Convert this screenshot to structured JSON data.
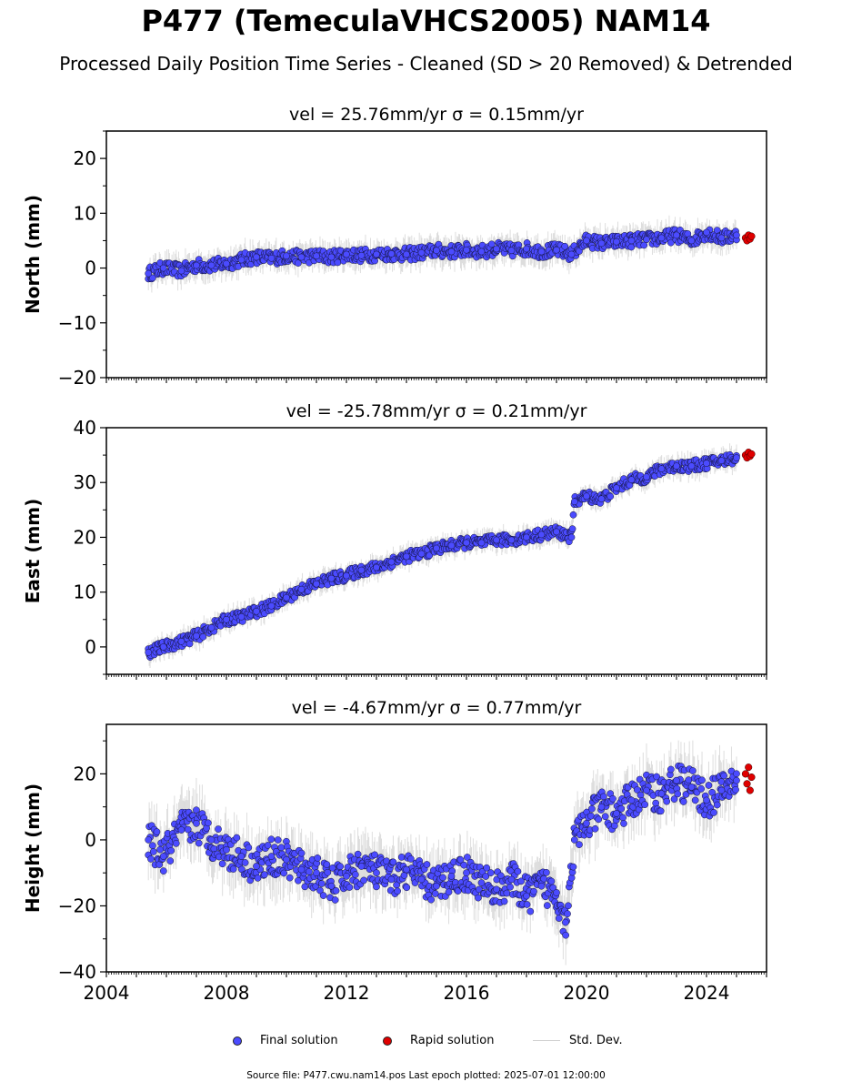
{
  "title": "P477 (TemeculaVHCS2005) NAM14",
  "subtitle": "Processed Daily Position Time Series - Cleaned (SD > 20 Removed) & Detrended",
  "legend": {
    "final_label": "Final solution",
    "rapid_label": "Rapid solution",
    "std_label": "Std. Dev."
  },
  "colors": {
    "final": "#4b4bff",
    "rapid": "#e00000",
    "std": "#c8c8c8"
  },
  "footer": "Source file: P477.cwu.nam14.pos  Last epoch plotted: 2025-07-01 12:00:00",
  "chart_data": [
    {
      "type": "scatter",
      "title": "vel = 25.76mm/yr   σ = 0.15mm/yr",
      "ylabel": "North (mm)",
      "xlim": [
        2004.0,
        2026.0
      ],
      "ylim": [
        -20,
        25
      ],
      "yticks": [
        -20,
        -10,
        0,
        10,
        20
      ],
      "series": [
        {
          "name": "Final solution",
          "x": [
            2005.4,
            2005.9,
            2006.5,
            2007.0,
            2007.5,
            2008.0,
            2008.5,
            2009.0,
            2009.5,
            2010.0,
            2010.5,
            2011.0,
            2011.5,
            2012.0,
            2012.5,
            2013.0,
            2013.5,
            2014.0,
            2014.5,
            2015.0,
            2015.5,
            2016.0,
            2016.5,
            2017.0,
            2017.5,
            2018.0,
            2018.5,
            2019.0,
            2019.5,
            2020.0,
            2020.5,
            2021.0,
            2021.5,
            2022.0,
            2022.5,
            2023.0,
            2023.5,
            2024.0,
            2024.5,
            2025.0
          ],
          "y": [
            -1.0,
            0.0,
            -0.5,
            0.5,
            0.5,
            0.8,
            1.5,
            2.0,
            1.8,
            2.2,
            2.0,
            2.2,
            2.0,
            2.5,
            2.3,
            2.5,
            2.6,
            2.5,
            2.8,
            3.2,
            3.0,
            3.3,
            3.0,
            3.5,
            3.2,
            3.5,
            3.0,
            3.3,
            2.5,
            5.0,
            4.5,
            4.8,
            5.0,
            5.2,
            5.5,
            6.0,
            5.0,
            6.5,
            5.5,
            6.0
          ]
        },
        {
          "name": "Rapid solution",
          "x": [
            2025.3,
            2025.35,
            2025.4,
            2025.45,
            2025.5
          ],
          "y": [
            5.5,
            5.0,
            6.0,
            5.3,
            5.8
          ]
        }
      ]
    },
    {
      "type": "scatter",
      "title": "vel = -25.78mm/yr   σ = 0.21mm/yr",
      "ylabel": "East (mm)",
      "xlim": [
        2004.0,
        2026.0
      ],
      "ylim": [
        -5,
        40
      ],
      "yticks": [
        0,
        10,
        20,
        30,
        40
      ],
      "series": [
        {
          "name": "Final solution",
          "x": [
            2005.4,
            2005.9,
            2006.5,
            2007.0,
            2007.5,
            2008.0,
            2008.5,
            2009.0,
            2009.5,
            2010.0,
            2010.5,
            2011.0,
            2011.5,
            2012.0,
            2012.5,
            2013.0,
            2013.5,
            2014.0,
            2014.5,
            2015.0,
            2015.5,
            2016.0,
            2016.5,
            2017.0,
            2017.5,
            2018.0,
            2018.5,
            2019.0,
            2019.5,
            2019.6,
            2020.0,
            2020.5,
            2021.0,
            2021.5,
            2022.0,
            2022.5,
            2023.0,
            2023.5,
            2024.0,
            2024.5,
            2025.0
          ],
          "y": [
            -1.0,
            0.0,
            1.0,
            2.0,
            3.5,
            5.0,
            5.5,
            6.5,
            7.5,
            9.0,
            10.5,
            11.5,
            12.5,
            13.0,
            14.0,
            14.5,
            15.5,
            16.5,
            17.0,
            18.0,
            18.5,
            19.0,
            19.0,
            19.5,
            19.5,
            20.0,
            20.5,
            21.0,
            20.0,
            26.5,
            27.5,
            27.0,
            29.0,
            30.5,
            31.0,
            32.5,
            33.0,
            33.0,
            33.5,
            34.0,
            34.5
          ]
        },
        {
          "name": "Rapid solution",
          "x": [
            2025.3,
            2025.35,
            2025.4,
            2025.45,
            2025.5
          ],
          "y": [
            35.0,
            34.5,
            35.5,
            34.8,
            35.2
          ]
        }
      ]
    },
    {
      "type": "scatter",
      "title": "vel = -4.67mm/yr   σ = 0.77mm/yr",
      "ylabel": "Height (mm)",
      "xlabel": "",
      "xlim": [
        2004.0,
        2026.0
      ],
      "ylim": [
        -40,
        35
      ],
      "yticks": [
        -40,
        -20,
        0,
        20
      ],
      "xticks": [
        2004,
        2008,
        2012,
        2016,
        2020,
        2024
      ],
      "series": [
        {
          "name": "Final solution",
          "x": [
            2005.4,
            2005.9,
            2006.5,
            2007.0,
            2007.5,
            2008.0,
            2008.5,
            2009.0,
            2009.5,
            2010.0,
            2010.5,
            2011.0,
            2011.5,
            2012.0,
            2012.5,
            2013.0,
            2013.5,
            2014.0,
            2014.5,
            2015.0,
            2015.5,
            2016.0,
            2016.5,
            2017.0,
            2017.5,
            2018.0,
            2018.5,
            2019.0,
            2019.3,
            2019.6,
            2020.0,
            2020.5,
            2021.0,
            2021.5,
            2022.0,
            2022.5,
            2023.0,
            2023.5,
            2024.0,
            2024.5,
            2025.0
          ],
          "y": [
            0.0,
            -5.0,
            3.0,
            5.0,
            0.0,
            -3.0,
            -5.0,
            -8.0,
            -5.0,
            -6.0,
            -9.0,
            -10.0,
            -14.0,
            -11.0,
            -8.0,
            -10.0,
            -12.0,
            -9.0,
            -12.0,
            -14.0,
            -11.0,
            -10.0,
            -13.0,
            -15.0,
            -12.0,
            -17.0,
            -14.0,
            -16.0,
            -25.0,
            0.0,
            5.0,
            10.0,
            8.0,
            12.0,
            15.0,
            14.0,
            18.0,
            16.0,
            12.0,
            15.0,
            18.0
          ]
        },
        {
          "name": "Rapid solution",
          "x": [
            2025.3,
            2025.35,
            2025.4,
            2025.45,
            2025.5
          ],
          "y": [
            20.0,
            17.0,
            22.0,
            15.0,
            19.0
          ]
        }
      ]
    }
  ]
}
